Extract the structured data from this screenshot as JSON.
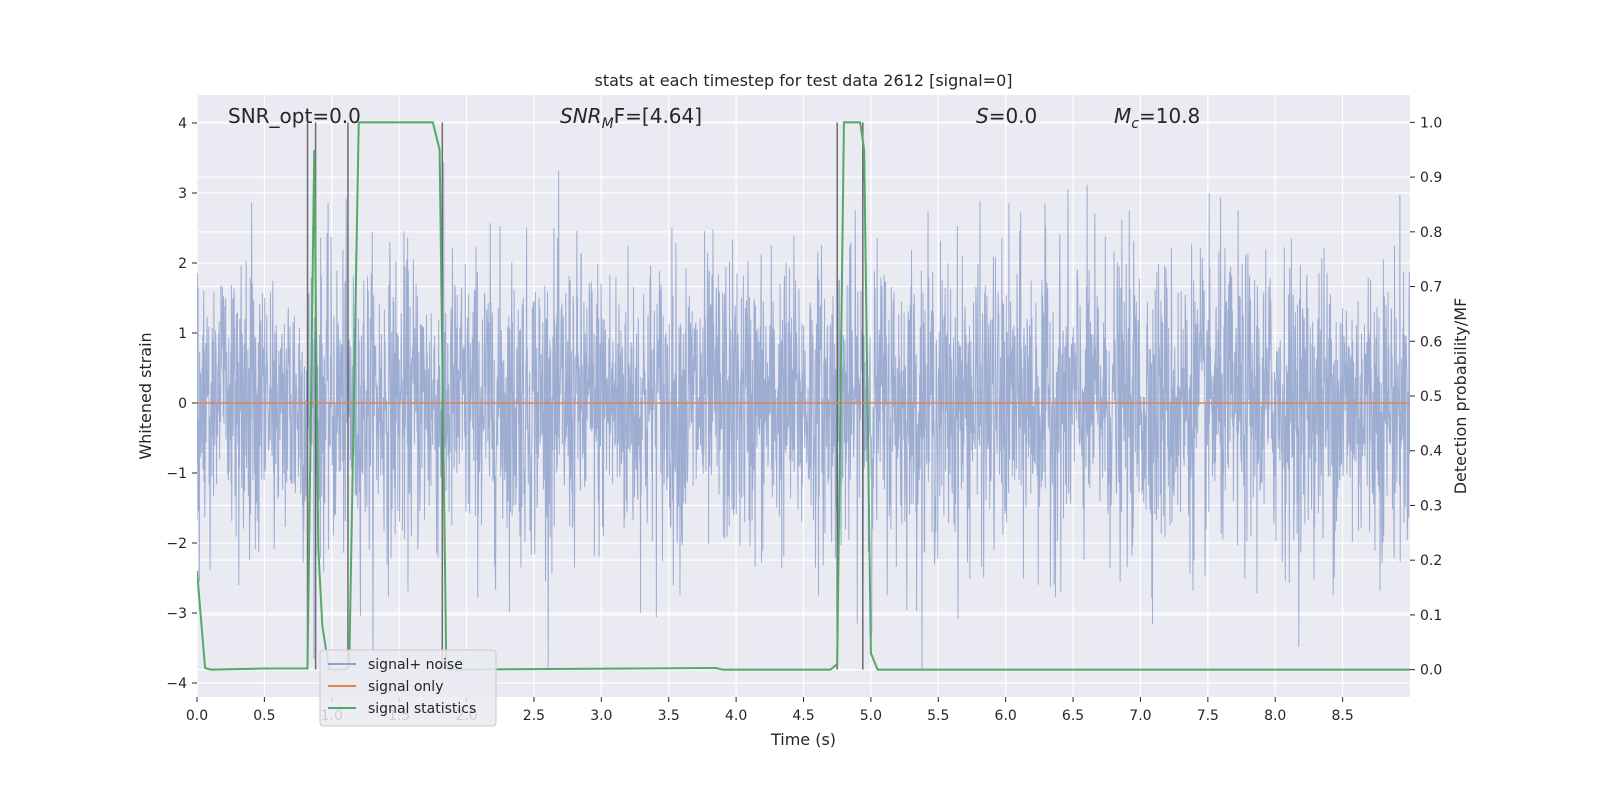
{
  "chart_data": {
    "type": "line",
    "title": "stats at each timestep for test data 2612 [signal=0]",
    "xlabel": "Time (s)",
    "ylabel": "Whitened strain",
    "ylabel_right": "Detection probability/MF",
    "xlim": [
      0.0,
      9.0
    ],
    "ylim": [
      -4.2,
      4.4
    ],
    "ylim_right": [
      -0.05,
      1.05
    ],
    "x_ticks": [
      "0.0",
      "0.5",
      "1.0",
      "1.5",
      "2.0",
      "2.5",
      "3.0",
      "3.5",
      "4.0",
      "4.5",
      "5.0",
      "5.5",
      "6.0",
      "6.5",
      "7.0",
      "7.5",
      "8.0",
      "8.5"
    ],
    "x_tick_values": [
      0.0,
      0.5,
      1.0,
      1.5,
      2.0,
      2.5,
      3.0,
      3.5,
      4.0,
      4.5,
      5.0,
      5.5,
      6.0,
      6.5,
      7.0,
      7.5,
      8.0,
      8.5
    ],
    "y_ticks": [
      "4",
      "3",
      "2",
      "1",
      "0",
      "−1",
      "−2",
      "−3",
      "−4"
    ],
    "y_tick_values": [
      4,
      3,
      2,
      1,
      0,
      -1,
      -2,
      -3,
      -4
    ],
    "y_ticks_right": [
      "1.0",
      "0.9",
      "0.8",
      "0.7",
      "0.6",
      "0.5",
      "0.4",
      "0.3",
      "0.2",
      "0.1",
      "0.0"
    ],
    "y_tick_values_right": [
      1.0,
      0.9,
      0.8,
      0.7,
      0.6,
      0.5,
      0.4,
      0.3,
      0.2,
      0.1,
      0.0
    ],
    "grid": true,
    "legend_position": "lower-left",
    "annotations": [
      "SNR_opt=0.0",
      "SNR",
      "M",
      "F=[4.64]",
      "S",
      "=0.0",
      "M",
      "c",
      "=10.8"
    ],
    "series": [
      {
        "name": "signal+ noise",
        "color": "#8fa2cd",
        "axis": "left",
        "style": "dense noise, roughly |y| < 2.5 with spikes up to ±4"
      },
      {
        "name": "signal only",
        "color": "#dd8452",
        "axis": "left",
        "x": [
          0.0,
          9.0
        ],
        "y": [
          0.0,
          0.0
        ]
      },
      {
        "name": "signal statistics",
        "color": "#55a868",
        "axis": "right",
        "x": [
          0.0,
          0.06,
          0.1,
          0.5,
          0.8,
          0.82,
          0.87,
          0.9,
          0.93,
          0.98,
          1.1,
          1.13,
          1.2,
          1.75,
          1.8,
          1.85,
          1.9,
          3.85,
          3.9,
          4.7,
          4.75,
          4.8,
          4.92,
          4.95,
          5.0,
          5.05,
          9.0
        ],
        "y": [
          0.18,
          0.003,
          0.0,
          0.002,
          0.002,
          0.003,
          0.95,
          0.22,
          0.08,
          0.0,
          0.0,
          0.01,
          1.0,
          1.0,
          0.95,
          0.0,
          0.0,
          0.003,
          0.0,
          0.0,
          0.01,
          1.0,
          1.0,
          0.95,
          0.03,
          0.0,
          0.0
        ]
      }
    ],
    "vertical_lines": [
      0.82,
      0.88,
      1.12,
      1.82,
      4.75,
      4.94
    ]
  }
}
